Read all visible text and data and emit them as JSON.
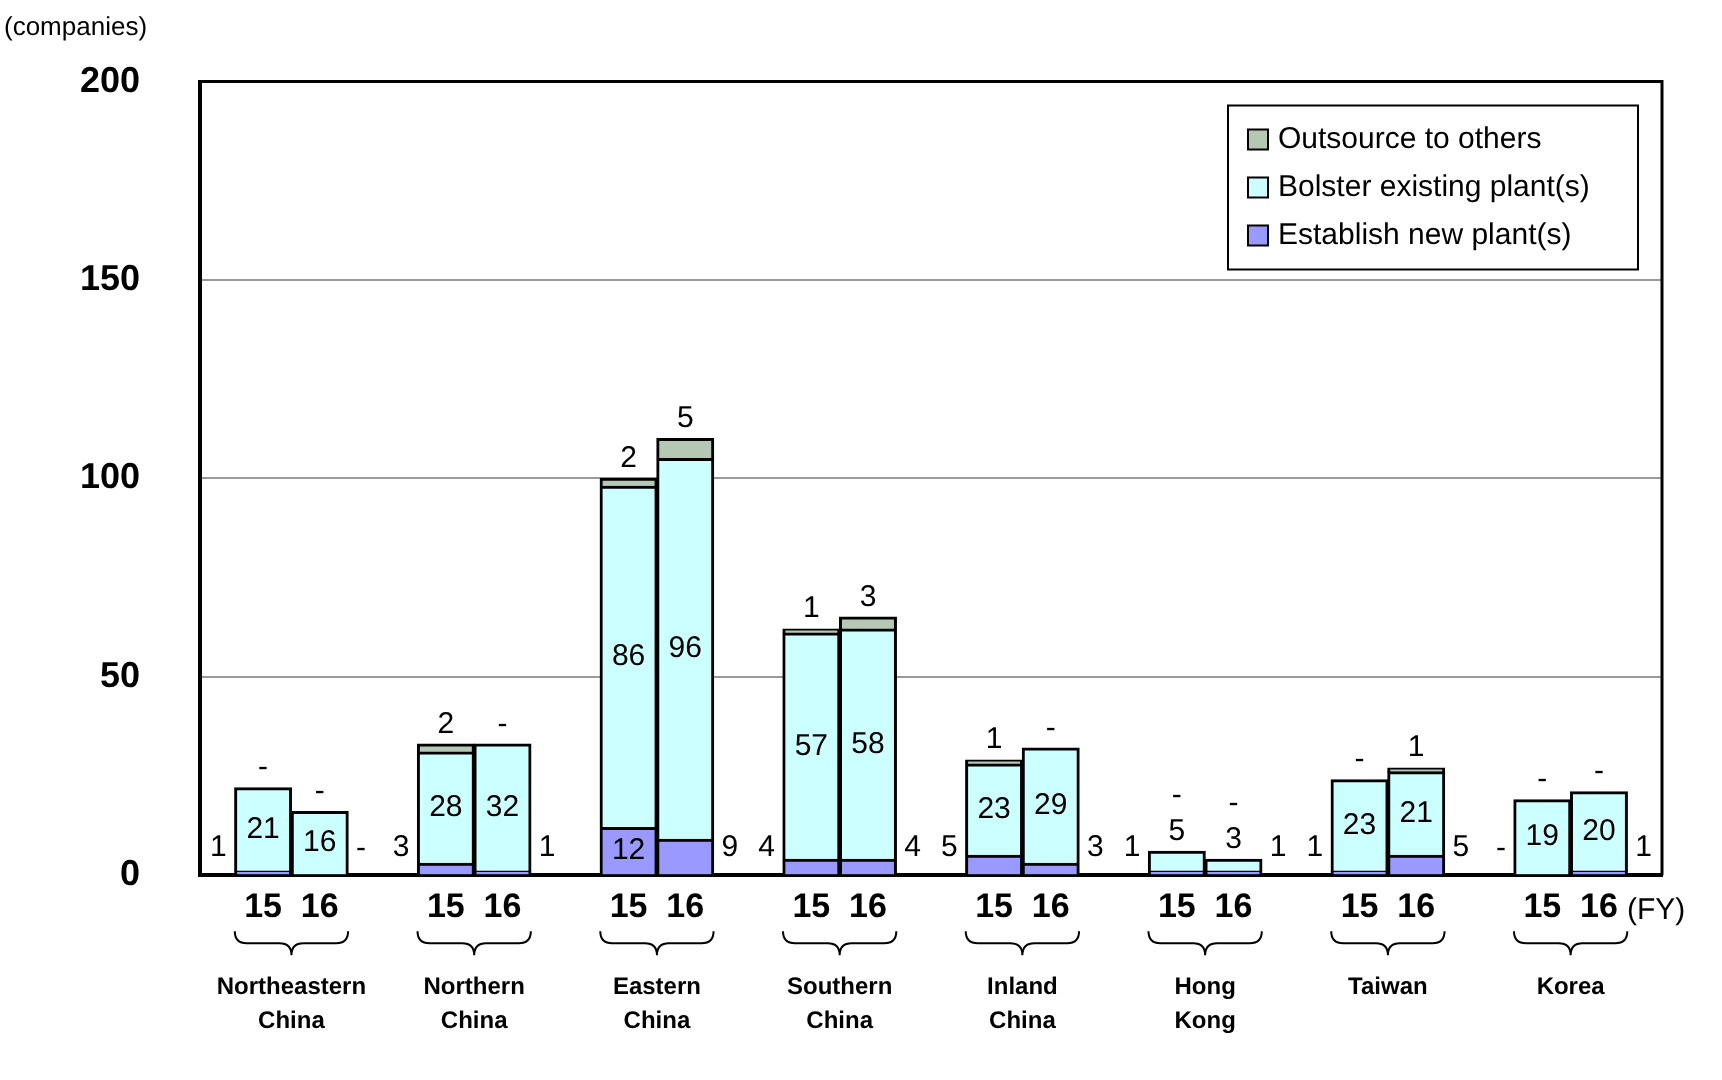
{
  "chart_data": {
    "type": "bar",
    "stacked": true,
    "ylabel": "(companies)",
    "xlabel": "(FY)",
    "categories": [
      "15",
      "16",
      "15",
      "16",
      "15",
      "16",
      "15",
      "16",
      "15",
      "16",
      "15",
      "16",
      "15",
      "16",
      "15",
      "16"
    ],
    "annotations": [
      "Northeastern China",
      "Northern China",
      "Eastern China",
      "Southern China",
      "Inland China",
      "Hong Kong",
      "Taiwan",
      "Korea"
    ],
    "series": [
      {
        "name": "Establish new plant(s)",
        "color": "#9999ff",
        "values": [
          1,
          0,
          3,
          1,
          12,
          9,
          4,
          4,
          5,
          3,
          1,
          1,
          1,
          5,
          0,
          1
        ],
        "value_labels": [
          "1",
          "-",
          "3",
          "1",
          "12",
          "9",
          "4",
          "4",
          "5",
          "3",
          "1",
          "1",
          "1",
          "5",
          "-",
          "1"
        ]
      },
      {
        "name": "Bolster existing plant(s)",
        "color": "#ccffff",
        "values": [
          21,
          16,
          28,
          32,
          86,
          96,
          57,
          58,
          23,
          29,
          5,
          3,
          23,
          21,
          19,
          20
        ],
        "value_labels": [
          "21",
          "16",
          "28",
          "32",
          "86",
          "96",
          "57",
          "58",
          "23",
          "29",
          "5",
          "3",
          "23",
          "21",
          "19",
          "20"
        ]
      },
      {
        "name": "Outsource to others",
        "color": "#b4c8b4",
        "values": [
          0,
          0,
          2,
          0,
          2,
          5,
          1,
          3,
          1,
          0,
          0,
          0,
          0,
          1,
          0,
          0
        ],
        "value_labels": [
          "-",
          "-",
          "2",
          "-",
          "2",
          "5",
          "1",
          "3",
          "1",
          "-",
          "-",
          "-",
          "-",
          "1",
          "-",
          "-"
        ]
      }
    ],
    "ylim": [
      0,
      200
    ],
    "yticks": [
      0,
      50,
      100,
      150,
      200
    ],
    "grid": "y",
    "legend": "top right"
  }
}
